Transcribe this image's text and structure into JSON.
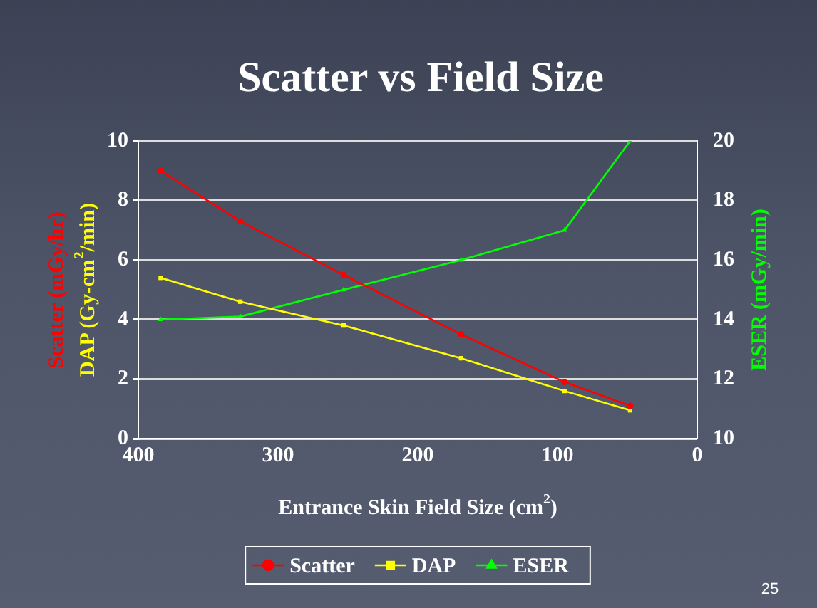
{
  "chart_data": {
    "type": "line",
    "title": "Scatter vs Field Size",
    "xlabel": "Entrance Skin Field Size (cm$^{2}$)",
    "ylabel": "Scatter (mGy/hr)",
    "y2label": "ESER (mGy/min)",
    "annotations": [
      "DAP (Gy-cm$^{2}$/min)",
      "25"
    ],
    "x": [
      384,
      327,
      253,
      169,
      95,
      48
    ],
    "series": [
      {
        "name": "Scatter",
        "color": "#ff0000",
        "marker": "circle",
        "values": [
          9.0,
          7.3,
          5.5,
          3.5,
          1.9,
          1.1
        ]
      },
      {
        "name": "DAP",
        "color": "#ffff00",
        "marker": "square",
        "values": [
          5.4,
          4.6,
          3.8,
          2.7,
          1.6,
          0.95
        ]
      },
      {
        "name": "ESER",
        "color": "#00ff00",
        "marker": "triangle",
        "axis": "y2",
        "values": [
          14.0,
          14.1,
          15.0,
          16.0,
          17.0,
          20.0
        ]
      }
    ],
    "xlim": [
      400,
      0
    ],
    "xticks": [
      400,
      300,
      200,
      100,
      0
    ],
    "ylim": [
      0,
      10
    ],
    "yticks": [
      0,
      2,
      4,
      6,
      8,
      10
    ],
    "y2lim": [
      10,
      20
    ],
    "y2ticks": [
      10,
      12,
      14,
      16,
      18,
      20
    ],
    "grid": "y",
    "legend": "bottom",
    "line_style": "solid"
  }
}
